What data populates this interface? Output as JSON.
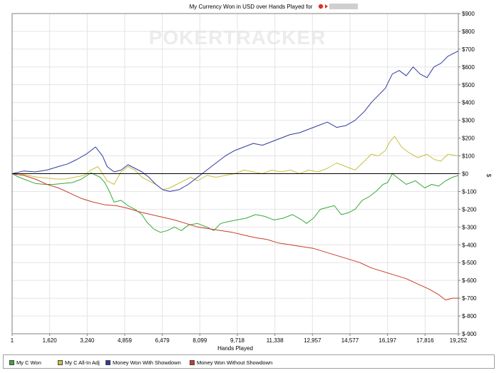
{
  "chart_data": {
    "type": "line",
    "title": "My Currency Won in USD over Hands Played for",
    "watermark": "POKERTRACKER",
    "xlabel": "Hands Played",
    "ylabel": "$",
    "xlim": [
      1,
      19252
    ],
    "ylim": [
      -900,
      900
    ],
    "x_ticks": [
      1,
      1620,
      3240,
      4859,
      6479,
      8099,
      9718,
      11338,
      12957,
      14577,
      16197,
      17816,
      19252
    ],
    "x_tick_labels": [
      "1",
      "1,620",
      "3,240",
      "4,859",
      "6,479",
      "8,099",
      "9,718",
      "11,338",
      "12,957",
      "14,577",
      "16,197",
      "17,816",
      "19,252"
    ],
    "y_ticks": [
      900,
      800,
      700,
      600,
      500,
      400,
      300,
      200,
      100,
      0,
      -100,
      -200,
      -300,
      -400,
      -500,
      -600,
      -700,
      -800,
      -900
    ],
    "y_tick_labels": [
      "$900",
      "$800",
      "$700",
      "$600",
      "$500",
      "$400",
      "$300",
      "$200",
      "$100",
      "$0",
      "$-100",
      "$-200",
      "$-300",
      "$-400",
      "$-500",
      "$-600",
      "$-700",
      "$-800",
      "$-900"
    ],
    "grid": true,
    "legend_position": "bottom",
    "series": [
      {
        "name": "My C Won",
        "color": "#3aa83a",
        "x": [
          1,
          300,
          700,
          1000,
          1400,
          1800,
          2200,
          2600,
          3000,
          3400,
          3800,
          4000,
          4200,
          4400,
          4700,
          5000,
          5300,
          5600,
          5800,
          6100,
          6400,
          6700,
          7000,
          7300,
          7600,
          8000,
          8400,
          8700,
          9000,
          9300,
          9700,
          10100,
          10500,
          10900,
          11300,
          11700,
          12100,
          12500,
          12700,
          13000,
          13300,
          13600,
          13900,
          14200,
          14500,
          14800,
          15100,
          15400,
          15700,
          16000,
          16200,
          16400,
          16700,
          17000,
          17400,
          17800,
          18100,
          18400,
          18700,
          19000,
          19252
        ],
        "values": [
          0,
          -20,
          -40,
          -55,
          -60,
          -60,
          -55,
          -50,
          -30,
          5,
          -20,
          -50,
          -100,
          -160,
          -150,
          -180,
          -200,
          -230,
          -270,
          -310,
          -330,
          -320,
          -300,
          -320,
          -290,
          -280,
          -300,
          -320,
          -280,
          -270,
          -260,
          -250,
          -230,
          -240,
          -260,
          -250,
          -230,
          -260,
          -280,
          -250,
          -200,
          -190,
          -180,
          -230,
          -220,
          -200,
          -150,
          -130,
          -100,
          -60,
          -50,
          0,
          -30,
          -60,
          -40,
          -80,
          -60,
          -70,
          -40,
          -20,
          -10
        ]
      },
      {
        "name": "My C All-In Adj",
        "color": "#c8c040",
        "x": [
          1,
          300,
          700,
          1100,
          1500,
          1900,
          2300,
          2700,
          3100,
          3400,
          3700,
          3900,
          4100,
          4400,
          4700,
          5000,
          5300,
          5600,
          5900,
          6200,
          6500,
          6800,
          7100,
          7400,
          7700,
          8000,
          8400,
          8800,
          9200,
          9600,
          10000,
          10400,
          10800,
          11200,
          11600,
          12000,
          12400,
          12800,
          13200,
          13600,
          14000,
          14400,
          14800,
          15200,
          15500,
          15800,
          16100,
          16300,
          16500,
          16800,
          17100,
          17500,
          17900,
          18200,
          18500,
          18800,
          19252
        ],
        "values": [
          0,
          0,
          -10,
          -20,
          -25,
          -30,
          -30,
          -20,
          -10,
          20,
          40,
          0,
          -40,
          -60,
          10,
          40,
          20,
          -20,
          -40,
          -60,
          -90,
          -80,
          -60,
          -40,
          -20,
          -40,
          -10,
          -20,
          -10,
          0,
          20,
          10,
          0,
          20,
          10,
          20,
          0,
          20,
          10,
          30,
          60,
          40,
          20,
          70,
          110,
          100,
          130,
          180,
          210,
          150,
          120,
          90,
          110,
          80,
          70,
          110,
          100
        ]
      },
      {
        "name": "Money Won With Showdown",
        "color": "#2e3a9e",
        "x": [
          1,
          500,
          1000,
          1500,
          2000,
          2400,
          2800,
          3200,
          3600,
          3900,
          4100,
          4400,
          4700,
          5000,
          5300,
          5600,
          5900,
          6200,
          6500,
          6800,
          7200,
          7600,
          8000,
          8400,
          8800,
          9200,
          9600,
          10000,
          10400,
          10800,
          11200,
          11600,
          12000,
          12400,
          12800,
          13200,
          13600,
          14000,
          14400,
          14800,
          15200,
          15500,
          15800,
          16100,
          16400,
          16700,
          17000,
          17300,
          17600,
          17900,
          18200,
          18500,
          18800,
          19100,
          19252
        ],
        "values": [
          0,
          15,
          10,
          20,
          40,
          55,
          80,
          110,
          150,
          100,
          40,
          10,
          20,
          50,
          30,
          10,
          -20,
          -60,
          -90,
          -100,
          -90,
          -60,
          -20,
          20,
          60,
          100,
          130,
          150,
          170,
          160,
          180,
          200,
          220,
          230,
          250,
          270,
          290,
          260,
          270,
          300,
          350,
          400,
          440,
          480,
          560,
          580,
          550,
          600,
          560,
          540,
          600,
          620,
          660,
          680,
          690
        ]
      },
      {
        "name": "Money Won Without Showdown",
        "color": "#c83c28",
        "x": [
          1,
          500,
          1000,
          1500,
          2000,
          2500,
          3000,
          3500,
          4000,
          4500,
          5000,
          5500,
          6000,
          6500,
          7000,
          7500,
          8000,
          8500,
          9000,
          9500,
          10000,
          10500,
          11000,
          11500,
          12000,
          12500,
          13000,
          13500,
          14000,
          14500,
          15000,
          15500,
          16000,
          16500,
          17000,
          17500,
          18000,
          18400,
          18700,
          19000,
          19252
        ],
        "values": [
          0,
          -10,
          -30,
          -60,
          -80,
          -110,
          -140,
          -160,
          -175,
          -180,
          -195,
          -215,
          -230,
          -245,
          -260,
          -280,
          -300,
          -310,
          -320,
          -330,
          -345,
          -360,
          -370,
          -390,
          -400,
          -410,
          -420,
          -440,
          -460,
          -480,
          -500,
          -530,
          -550,
          -570,
          -590,
          -620,
          -650,
          -680,
          -710,
          -700,
          -700
        ]
      }
    ]
  }
}
